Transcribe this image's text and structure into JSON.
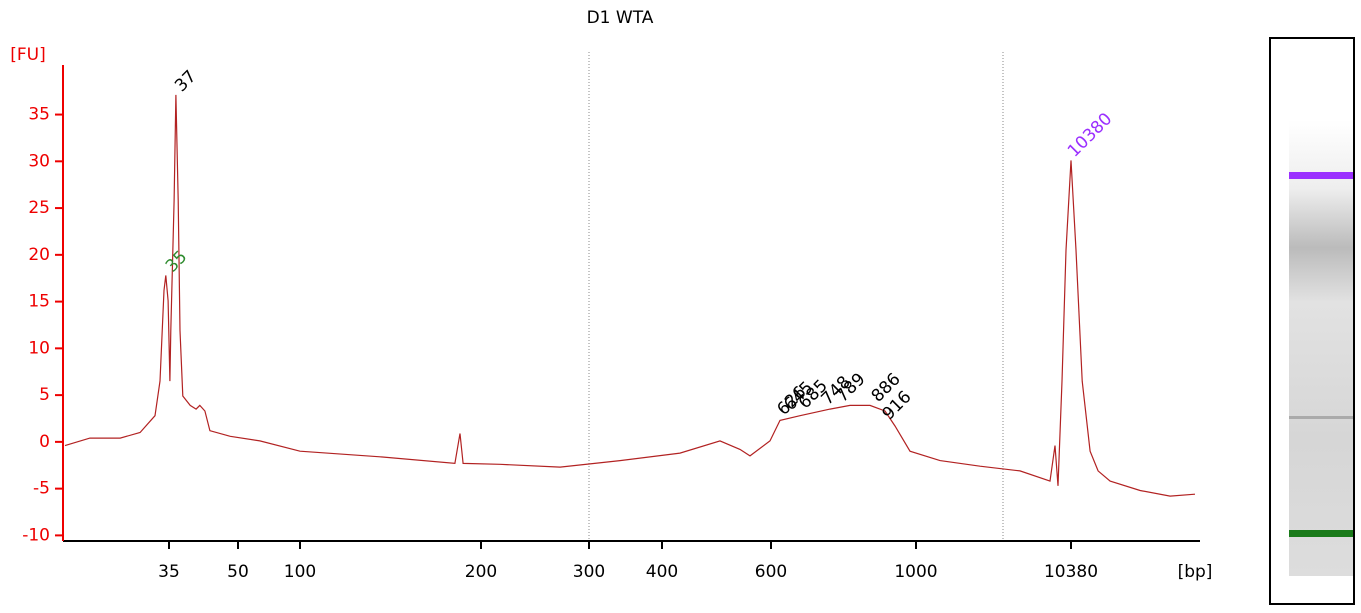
{
  "chart_data": {
    "type": "line",
    "title": "D1 WTA",
    "y_label": "[FU]",
    "x_label": "[bp]",
    "xlim": [
      12,
      18000
    ],
    "ylim": [
      -10.6,
      40.3
    ],
    "xticks": [
      35,
      50,
      100,
      200,
      300,
      400,
      600,
      1000,
      10380
    ],
    "yticks": [
      -10,
      -5,
      0,
      5,
      10,
      15,
      20,
      25,
      30,
      35
    ],
    "series": [
      {
        "color": "#b22222",
        "x": [
          12,
          17.5,
          24.2,
          28.6,
          31.9,
          33.0,
          33.9,
          34.3,
          34.8,
          35.2,
          35.4,
          36.1,
          36.5,
          37.0,
          37.4,
          38.0,
          39.6,
          40.9,
          41.7,
          42.8,
          43.9,
          48.3,
          67.7,
          100,
          144.2,
          185.6,
          188.4,
          190.1,
          217.6,
          273.2,
          342.5,
          433.0,
          506.4,
          543.1,
          561.5,
          598.2,
          624.8,
          680.0,
          762.8,
          818.0,
          873.1,
          914.5,
          942.1,
          983.5,
          2452,
          4873,
          7294,
          9110,
          9412,
          9594,
          9836,
          10078,
          10380,
          10687,
          11067,
          11556,
          12048,
          12785,
          14629,
          16472,
          18000
        ],
        "values": [
          -0.4,
          0.4,
          0.4,
          1.0,
          2.8,
          6.5,
          16.2,
          17.8,
          15.1,
          6.5,
          11.9,
          25.8,
          37.1,
          25.8,
          11.9,
          4.9,
          3.9,
          3.5,
          3.9,
          3.3,
          1.2,
          0.6,
          0.1,
          -1.0,
          -1.6,
          -2.3,
          0.9,
          -2.3,
          -2.4,
          -2.7,
          -2.0,
          -1.2,
          0.1,
          -0.8,
          -1.5,
          0.1,
          2.3,
          2.8,
          3.5,
          3.9,
          3.9,
          3.3,
          1.7,
          -1.0,
          -2.0,
          -2.6,
          -3.1,
          -4.2,
          -0.4,
          -4.7,
          6.5,
          20.5,
          30.1,
          20.5,
          6.5,
          -1.0,
          -3.1,
          -4.2,
          -5.2,
          -5.8,
          -5.6
        ]
      }
    ],
    "peaks": [
      {
        "size": 35,
        "fu": 17.8,
        "color": "#2e8b2e"
      },
      {
        "size": 37,
        "fu": 37.1,
        "color": "#000000"
      },
      {
        "size": 626,
        "fu": 2.5,
        "color": "#000000"
      },
      {
        "size": 645,
        "fu": 3.0,
        "color": "#000000"
      },
      {
        "size": 685,
        "fu": 3.2,
        "color": "#000000"
      },
      {
        "size": 748,
        "fu": 3.6,
        "color": "#000000"
      },
      {
        "size": 789,
        "fu": 3.9,
        "color": "#000000"
      },
      {
        "size": 886,
        "fu": 3.9,
        "color": "#000000"
      },
      {
        "size": 916,
        "fu": 2.0,
        "color": "#000000"
      },
      {
        "size": 10380,
        "fu": 30.1,
        "color": "#9b30ff"
      }
    ]
  }
}
